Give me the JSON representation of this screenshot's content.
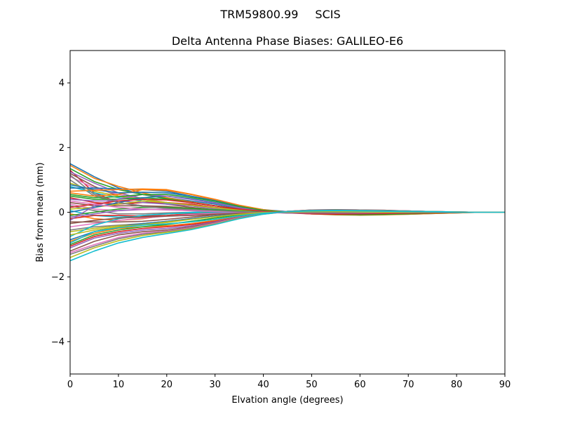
{
  "figure": {
    "suptitle_left": "TRM59800.99",
    "suptitle_right": "SCIS"
  },
  "chart_data": {
    "type": "line",
    "title": "Delta Antenna Phase Biases: GALILEO-E6",
    "xlabel": "Elvation angle (degrees)",
    "ylabel": "Bias from mean (mm)",
    "xlim": [
      0,
      90
    ],
    "ylim": [
      -5,
      5
    ],
    "x_ticks": [
      0,
      10,
      20,
      30,
      40,
      50,
      60,
      70,
      80,
      90
    ],
    "y_ticks": [
      -4,
      -2,
      0,
      2,
      4
    ],
    "x_tick_labels": [
      "0",
      "10",
      "20",
      "30",
      "40",
      "50",
      "60",
      "70",
      "80",
      "90"
    ],
    "y_tick_labels": [
      "−4",
      "−2",
      "0",
      "2",
      "4"
    ],
    "grid": false,
    "x": [
      0,
      5,
      10,
      15,
      20,
      25,
      30,
      35,
      40,
      45,
      50,
      55,
      60,
      65,
      70,
      75,
      80,
      85,
      90
    ],
    "colors": [
      "#1f77b4",
      "#ff7f0e",
      "#2ca02c",
      "#d62728",
      "#9467bd",
      "#8c564b",
      "#e377c2",
      "#7f7f7f",
      "#bcbd22",
      "#17becf"
    ],
    "series": [
      {
        "values": [
          1.5,
          1.1,
          0.75,
          0.55,
          0.45,
          0.35,
          0.25,
          0.12,
          0.02,
          -0.02,
          -0.02,
          -0.02,
          -0.01,
          -0.01,
          0.0,
          0.0,
          0.0,
          0.0,
          0.0
        ]
      },
      {
        "values": [
          1.45,
          1.05,
          0.8,
          0.6,
          0.45,
          0.32,
          0.2,
          0.1,
          0.02,
          0.01,
          0.0,
          0.0,
          0.0,
          0.0,
          0.0,
          0.0,
          0.0,
          0.0,
          0.0
        ]
      },
      {
        "values": [
          1.35,
          0.95,
          0.7,
          0.55,
          0.42,
          0.3,
          0.2,
          0.08,
          0.01,
          -0.01,
          0.0,
          0.0,
          0.0,
          0.0,
          0.0,
          0.0,
          0.0,
          0.0,
          0.0
        ]
      },
      {
        "values": [
          1.3,
          0.6,
          0.3,
          0.2,
          0.15,
          0.1,
          0.05,
          0.02,
          0.0,
          -0.02,
          -0.02,
          -0.02,
          -0.02,
          -0.01,
          0.0,
          0.0,
          0.0,
          0.0,
          0.0
        ]
      },
      {
        "values": [
          1.25,
          0.9,
          0.6,
          0.42,
          0.3,
          0.2,
          0.12,
          0.05,
          0.0,
          -0.02,
          -0.03,
          -0.03,
          -0.02,
          -0.01,
          0.0,
          0.0,
          0.0,
          0.0,
          0.0
        ]
      },
      {
        "values": [
          1.2,
          0.8,
          0.5,
          0.35,
          0.25,
          0.15,
          0.08,
          0.03,
          0.0,
          0.0,
          0.0,
          0.0,
          0.0,
          0.0,
          0.0,
          0.0,
          0.0,
          0.0,
          0.0
        ]
      },
      {
        "values": [
          1.1,
          0.75,
          0.55,
          0.4,
          0.3,
          0.2,
          0.1,
          0.04,
          0.0,
          -0.01,
          -0.01,
          -0.01,
          -0.01,
          0.0,
          0.0,
          0.0,
          0.0,
          0.0,
          0.0
        ]
      },
      {
        "values": [
          1.0,
          0.5,
          0.3,
          0.2,
          0.12,
          0.08,
          0.05,
          0.02,
          0.0,
          0.0,
          0.0,
          0.0,
          0.0,
          0.0,
          0.0,
          0.0,
          0.0,
          0.0,
          0.0
        ]
      },
      {
        "values": [
          0.9,
          0.65,
          0.5,
          0.4,
          0.3,
          0.2,
          0.12,
          0.05,
          0.0,
          -0.01,
          -0.02,
          -0.02,
          -0.01,
          0.0,
          0.0,
          0.0,
          0.0,
          0.0,
          0.0
        ]
      },
      {
        "values": [
          0.8,
          0.6,
          0.45,
          0.35,
          0.28,
          0.2,
          0.12,
          0.05,
          0.01,
          0.0,
          0.0,
          0.0,
          0.0,
          0.0,
          0.0,
          0.0,
          0.0,
          0.0,
          0.0
        ]
      },
      {
        "values": [
          0.75,
          0.75,
          0.72,
          0.7,
          0.65,
          0.5,
          0.35,
          0.2,
          0.08,
          0.02,
          0.0,
          -0.02,
          -0.03,
          -0.02,
          0.0,
          0.0,
          0.0,
          0.0,
          0.0
        ]
      },
      {
        "values": [
          0.6,
          0.5,
          0.55,
          0.7,
          0.68,
          0.55,
          0.38,
          0.2,
          0.06,
          0.0,
          -0.02,
          -0.03,
          -0.03,
          -0.02,
          -0.01,
          0.0,
          0.0,
          0.0,
          0.0
        ]
      },
      {
        "values": [
          0.5,
          0.4,
          0.4,
          0.45,
          0.4,
          0.3,
          0.2,
          0.1,
          0.02,
          -0.02,
          -0.03,
          -0.03,
          -0.02,
          -0.01,
          0.0,
          0.0,
          0.0,
          0.0,
          0.0
        ]
      },
      {
        "values": [
          0.45,
          0.3,
          0.25,
          0.3,
          0.3,
          0.25,
          0.15,
          0.08,
          0.02,
          0.0,
          0.0,
          0.0,
          0.0,
          0.0,
          0.0,
          0.0,
          0.0,
          0.0,
          0.0
        ]
      },
      {
        "values": [
          0.4,
          0.35,
          0.35,
          0.3,
          0.25,
          0.2,
          0.12,
          0.05,
          0.0,
          -0.02,
          -0.02,
          -0.02,
          -0.01,
          0.0,
          0.0,
          0.0,
          0.0,
          0.0,
          0.0
        ]
      },
      {
        "values": [
          0.3,
          0.2,
          0.2,
          0.2,
          0.18,
          0.12,
          0.08,
          0.04,
          0.01,
          0.0,
          0.0,
          0.0,
          0.0,
          0.0,
          0.0,
          0.0,
          0.0,
          0.0,
          0.0
        ]
      },
      {
        "values": [
          0.25,
          0.1,
          0.05,
          0.08,
          0.1,
          0.08,
          0.05,
          0.02,
          0.0,
          0.0,
          0.0,
          0.0,
          0.0,
          0.0,
          0.0,
          0.0,
          0.0,
          0.0,
          0.0
        ]
      },
      {
        "values": [
          0.2,
          0.05,
          -0.05,
          -0.05,
          -0.02,
          0.0,
          0.02,
          0.02,
          0.0,
          -0.01,
          -0.02,
          -0.02,
          -0.01,
          0.0,
          0.0,
          0.0,
          0.0,
          0.0,
          0.0
        ]
      },
      {
        "values": [
          0.1,
          0.15,
          0.25,
          0.35,
          0.3,
          0.22,
          0.14,
          0.06,
          0.01,
          -0.01,
          -0.01,
          -0.01,
          -0.01,
          0.0,
          0.0,
          0.0,
          0.0,
          0.0,
          0.0
        ]
      },
      {
        "values": [
          0.05,
          -0.1,
          -0.15,
          -0.1,
          -0.05,
          0.0,
          0.03,
          0.02,
          0.0,
          0.0,
          0.0,
          0.0,
          0.0,
          0.0,
          0.0,
          0.0,
          0.0,
          0.0,
          0.0
        ]
      },
      {
        "values": [
          0.0,
          0.15,
          0.3,
          0.45,
          0.5,
          0.42,
          0.3,
          0.15,
          0.04,
          -0.01,
          -0.03,
          -0.03,
          -0.03,
          -0.02,
          -0.01,
          0.0,
          0.0,
          0.0,
          0.0
        ]
      },
      {
        "values": [
          -0.05,
          -0.2,
          -0.25,
          -0.2,
          -0.1,
          -0.03,
          0.02,
          0.02,
          0.0,
          0.0,
          0.0,
          0.0,
          0.0,
          0.0,
          0.0,
          0.0,
          0.0,
          0.0,
          0.0
        ]
      },
      {
        "values": [
          -0.1,
          0.0,
          0.1,
          0.15,
          0.15,
          0.12,
          0.08,
          0.04,
          0.01,
          0.0,
          0.0,
          0.0,
          0.0,
          0.0,
          0.0,
          0.0,
          0.0,
          0.0,
          0.0
        ]
      },
      {
        "values": [
          -0.2,
          -0.1,
          -0.1,
          -0.12,
          -0.1,
          -0.05,
          -0.02,
          0.0,
          0.0,
          0.01,
          0.02,
          0.02,
          0.01,
          0.0,
          0.0,
          0.0,
          0.0,
          0.0,
          0.0
        ]
      },
      {
        "values": [
          -0.25,
          0.2,
          0.4,
          0.55,
          0.5,
          0.4,
          0.28,
          0.14,
          0.04,
          0.0,
          -0.02,
          -0.02,
          -0.02,
          -0.01,
          0.0,
          0.0,
          0.0,
          0.0,
          0.0
        ]
      },
      {
        "values": [
          -0.3,
          -0.3,
          -0.3,
          -0.28,
          -0.22,
          -0.15,
          -0.08,
          -0.03,
          0.0,
          0.02,
          0.03,
          0.03,
          0.02,
          0.01,
          0.0,
          0.0,
          0.0,
          0.0,
          0.0
        ]
      },
      {
        "values": [
          -0.45,
          -0.35,
          -0.25,
          -0.18,
          -0.12,
          -0.07,
          -0.04,
          -0.02,
          0.0,
          0.0,
          0.0,
          0.0,
          0.0,
          0.0,
          0.0,
          0.0,
          0.0,
          0.0,
          0.0
        ]
      },
      {
        "values": [
          -0.55,
          -0.45,
          -0.4,
          -0.35,
          -0.28,
          -0.2,
          -0.12,
          -0.05,
          0.0,
          0.02,
          0.03,
          0.03,
          0.02,
          0.01,
          0.0,
          0.0,
          0.0,
          0.0,
          0.0
        ]
      },
      {
        "values": [
          -0.6,
          -0.5,
          -0.42,
          -0.38,
          -0.32,
          -0.22,
          -0.14,
          -0.06,
          -0.01,
          0.02,
          0.03,
          0.03,
          0.02,
          0.01,
          0.0,
          0.0,
          0.0,
          0.0,
          0.0
        ]
      },
      {
        "values": [
          -0.75,
          -0.4,
          -0.2,
          -0.1,
          -0.05,
          -0.02,
          0.0,
          0.0,
          0.0,
          0.0,
          0.0,
          0.0,
          0.0,
          0.0,
          0.0,
          0.0,
          0.0,
          0.0,
          0.0
        ]
      },
      {
        "values": [
          -0.85,
          -0.6,
          -0.45,
          -0.35,
          -0.28,
          -0.2,
          -0.12,
          -0.05,
          -0.01,
          0.01,
          0.02,
          0.02,
          0.01,
          0.0,
          0.0,
          0.0,
          0.0,
          0.0,
          0.0
        ]
      },
      {
        "values": [
          -0.9,
          -0.65,
          -0.5,
          -0.45,
          -0.42,
          -0.35,
          -0.25,
          -0.12,
          -0.03,
          0.02,
          0.04,
          0.05,
          0.04,
          0.03,
          0.02,
          0.01,
          0.0,
          0.0,
          0.0
        ]
      },
      {
        "values": [
          -1.0,
          -0.7,
          -0.55,
          -0.45,
          -0.38,
          -0.28,
          -0.18,
          -0.08,
          -0.02,
          0.01,
          0.03,
          0.03,
          0.02,
          0.01,
          0.0,
          0.0,
          0.0,
          0.0,
          0.0
        ]
      },
      {
        "values": [
          -1.05,
          -0.75,
          -0.6,
          -0.5,
          -0.45,
          -0.38,
          -0.28,
          -0.15,
          -0.04,
          0.03,
          0.06,
          0.07,
          0.06,
          0.05,
          0.04,
          0.02,
          0.01,
          0.0,
          0.0
        ]
      },
      {
        "values": [
          -1.1,
          -0.8,
          -0.65,
          -0.55,
          -0.5,
          -0.42,
          -0.3,
          -0.15,
          -0.04,
          0.03,
          0.07,
          0.08,
          0.07,
          0.06,
          0.04,
          0.02,
          0.01,
          0.0,
          0.0
        ]
      },
      {
        "values": [
          -1.2,
          -0.9,
          -0.7,
          -0.6,
          -0.55,
          -0.45,
          -0.32,
          -0.16,
          -0.04,
          0.03,
          0.07,
          0.08,
          0.07,
          0.06,
          0.04,
          0.02,
          0.01,
          0.0,
          0.0
        ]
      },
      {
        "values": [
          -1.25,
          -1.0,
          -0.78,
          -0.65,
          -0.58,
          -0.48,
          -0.34,
          -0.17,
          -0.05,
          0.03,
          0.06,
          0.07,
          0.06,
          0.05,
          0.04,
          0.02,
          0.01,
          0.0,
          0.0
        ]
      },
      {
        "values": [
          -1.3,
          -1.05,
          -0.82,
          -0.68,
          -0.6,
          -0.5,
          -0.36,
          -0.18,
          -0.05,
          0.03,
          0.06,
          0.07,
          0.06,
          0.05,
          0.04,
          0.02,
          0.01,
          0.0,
          0.0
        ]
      },
      {
        "values": [
          -1.4,
          -1.1,
          -0.88,
          -0.72,
          -0.62,
          -0.52,
          -0.37,
          -0.19,
          -0.06,
          0.02,
          0.05,
          0.06,
          0.05,
          0.04,
          0.03,
          0.02,
          0.01,
          0.0,
          0.0
        ]
      },
      {
        "values": [
          -1.5,
          -1.2,
          -0.95,
          -0.78,
          -0.66,
          -0.54,
          -0.38,
          -0.2,
          -0.06,
          0.02,
          0.05,
          0.06,
          0.05,
          0.04,
          0.03,
          0.02,
          0.01,
          0.0,
          0.0
        ]
      },
      {
        "values": [
          0.85,
          0.7,
          0.6,
          0.62,
          0.6,
          0.5,
          0.36,
          0.2,
          0.07,
          0.0,
          -0.04,
          -0.06,
          -0.07,
          -0.07,
          -0.06,
          -0.04,
          -0.02,
          0.0,
          0.0
        ]
      },
      {
        "values": [
          0.65,
          0.68,
          0.7,
          0.72,
          0.7,
          0.56,
          0.4,
          0.22,
          0.08,
          0.0,
          -0.05,
          -0.08,
          -0.09,
          -0.08,
          -0.06,
          -0.04,
          -0.02,
          0.0,
          0.0
        ]
      },
      {
        "values": [
          0.55,
          0.45,
          0.48,
          0.55,
          0.55,
          0.46,
          0.34,
          0.18,
          0.06,
          -0.01,
          -0.05,
          -0.07,
          -0.08,
          -0.07,
          -0.05,
          -0.03,
          -0.01,
          0.0,
          0.0
        ]
      },
      {
        "values": [
          0.15,
          0.25,
          0.35,
          0.4,
          0.38,
          0.3,
          0.2,
          0.1,
          0.03,
          -0.02,
          -0.05,
          -0.06,
          -0.05,
          -0.04,
          -0.03,
          -0.02,
          -0.01,
          0.0,
          0.0
        ]
      },
      {
        "values": [
          -0.15,
          -0.05,
          0.05,
          0.1,
          0.08,
          0.05,
          0.02,
          0.0,
          -0.01,
          -0.02,
          -0.02,
          -0.02,
          -0.02,
          -0.01,
          -0.01,
          0.0,
          0.0,
          0.0,
          0.0
        ]
      },
      {
        "values": [
          -0.35,
          -0.25,
          -0.18,
          -0.15,
          -0.12,
          -0.1,
          -0.06,
          -0.03,
          -0.01,
          0.0,
          0.01,
          0.01,
          0.0,
          0.0,
          0.0,
          0.0,
          0.0,
          0.0,
          0.0
        ]
      },
      {
        "values": [
          0.35,
          0.25,
          0.15,
          0.1,
          0.07,
          0.05,
          0.03,
          0.01,
          0.0,
          -0.01,
          -0.01,
          -0.01,
          0.0,
          0.0,
          0.0,
          0.0,
          0.0,
          0.0,
          0.0
        ]
      },
      {
        "values": [
          1.15,
          0.55,
          0.3,
          0.18,
          0.12,
          0.08,
          0.05,
          0.02,
          0.0,
          -0.01,
          -0.01,
          -0.01,
          0.0,
          0.0,
          0.0,
          0.0,
          0.0,
          0.0,
          0.0
        ]
      },
      {
        "values": [
          -0.7,
          -0.55,
          -0.45,
          -0.38,
          -0.3,
          -0.22,
          -0.14,
          -0.06,
          -0.01,
          0.01,
          0.02,
          0.02,
          0.01,
          0.0,
          0.0,
          0.0,
          0.0,
          0.0,
          0.0
        ]
      },
      {
        "values": [
          -0.95,
          -0.6,
          -0.48,
          -0.4,
          -0.36,
          -0.3,
          -0.22,
          -0.11,
          -0.03,
          0.02,
          0.04,
          0.05,
          0.04,
          0.03,
          0.02,
          0.01,
          0.0,
          0.0,
          0.0
        ]
      }
    ]
  }
}
